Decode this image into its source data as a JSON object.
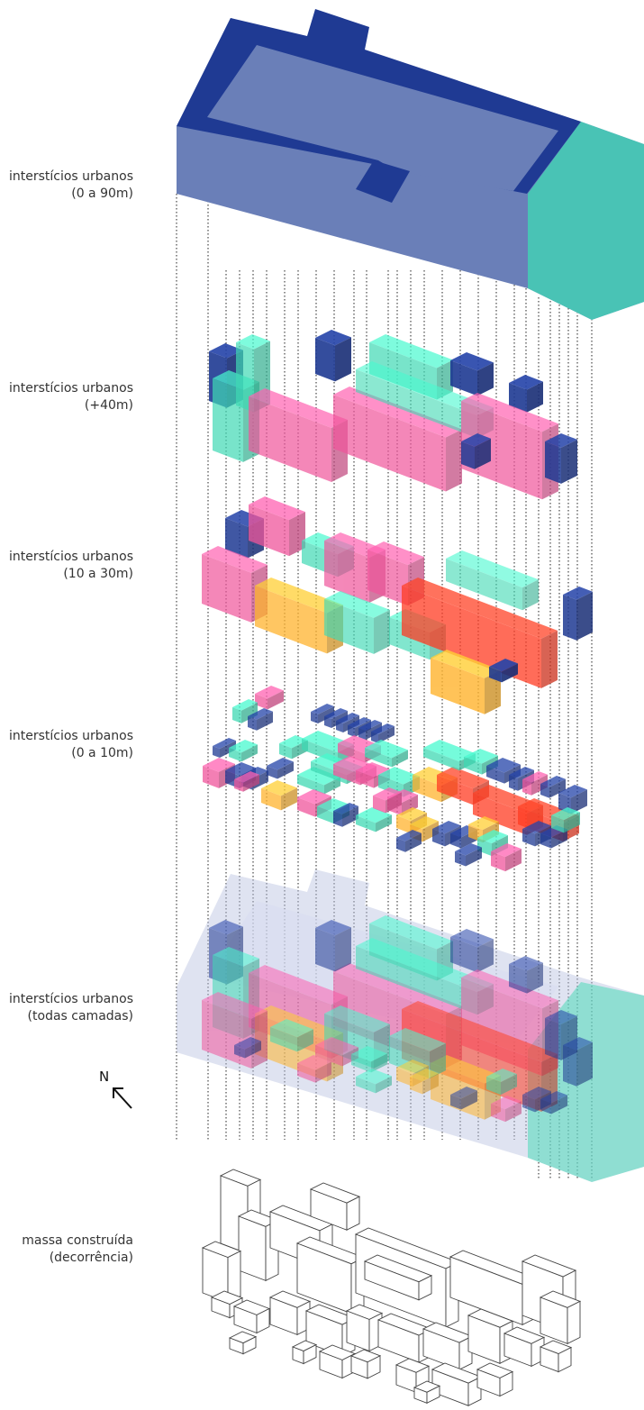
{
  "layers": [
    {
      "id": "l0",
      "line1": "interstícios urbanos",
      "line2": "(0 a 90m)"
    },
    {
      "id": "l1",
      "line1": "interstícios urbanos",
      "line2": "(+40m)"
    },
    {
      "id": "l2",
      "line1": "interstícios urbanos",
      "line2": "(10 a 30m)"
    },
    {
      "id": "l3",
      "line1": "interstícios urbanos",
      "line2": "(0 a 10m)"
    },
    {
      "id": "l4",
      "line1": "interstícios urbanos",
      "line2": "(todas camadas)"
    },
    {
      "id": "l5",
      "line1": "massa construída",
      "line2": "(decorrência)"
    }
  ],
  "north_label": "N",
  "colors": {
    "navy": "#1f3a93",
    "slate": "#6a7fb8",
    "teal": "#3fd9b4",
    "pink": "#f0559b",
    "orange": "#ffb42e",
    "red": "#ff3b22",
    "outline": "#444444"
  }
}
